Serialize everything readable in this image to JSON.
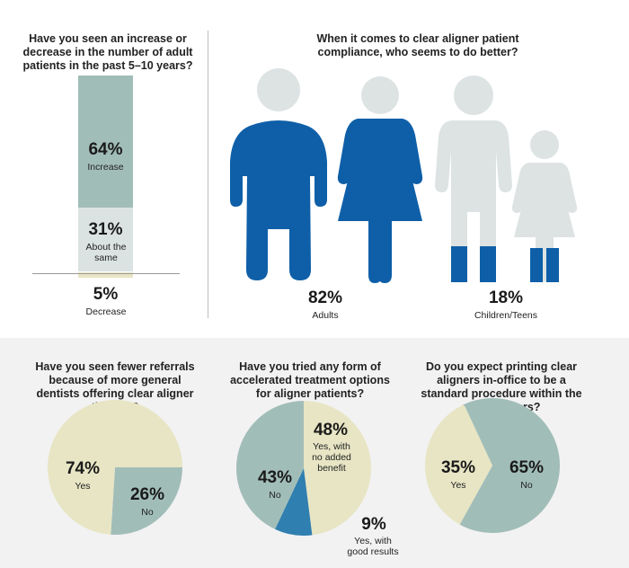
{
  "colors": {
    "teal": "#a1bdb8",
    "light_teal": "#dbe3e2",
    "beige": "#e7e5c4",
    "blue": "#0e5fa8",
    "gray_figure": "#dde3e3",
    "mid_blue": "#2f7fb0"
  },
  "chart_data": [
    {
      "type": "bar",
      "title": "Have you seen an increase or decrease in the number of adult patients in the past 5–10 years?",
      "stacked": true,
      "categories": [
        "Increase",
        "About the same",
        "Decrease"
      ],
      "values": [
        64,
        31,
        5
      ],
      "labels": [
        "64%",
        "31%",
        "5%"
      ],
      "label_texts": [
        "Increase",
        "About the same",
        "Decrease"
      ],
      "colors": [
        "#a1bdb8",
        "#dbe3e2",
        "#e7e5c4"
      ]
    },
    {
      "type": "bar",
      "title": "When it comes to clear aligner patient compliance, who seems to do better?",
      "style": "pictogram",
      "categories": [
        "Adults",
        "Children/Teens"
      ],
      "values": [
        82,
        18
      ],
      "labels": [
        "82%",
        "18%"
      ]
    },
    {
      "type": "pie",
      "title": "Have you seen fewer referrals because of more general dentists offering clear aligner therapy?",
      "categories": [
        "Yes",
        "No"
      ],
      "values": [
        74,
        26
      ],
      "labels": [
        "74%",
        "26%"
      ],
      "colors": [
        "#e7e5c4",
        "#a1bdb8"
      ]
    },
    {
      "type": "pie",
      "title": "Have you tried any form of accelerated treatment options for aligner patients?",
      "categories": [
        "Yes, with no added benefit",
        "Yes, with good results",
        "No"
      ],
      "values": [
        48,
        9,
        43
      ],
      "labels": [
        "48%",
        "9%",
        "43%"
      ],
      "colors": [
        "#e7e5c4",
        "#2f7fb0",
        "#a1bdb8"
      ]
    },
    {
      "type": "pie",
      "title": "Do you expect printing clear aligners in-office to be a standard procedure within the next 10 years?",
      "categories": [
        "No",
        "Yes"
      ],
      "values": [
        65,
        35
      ],
      "labels": [
        "65%",
        "35%"
      ],
      "colors": [
        "#a1bdb8",
        "#e7e5c4"
      ]
    }
  ]
}
